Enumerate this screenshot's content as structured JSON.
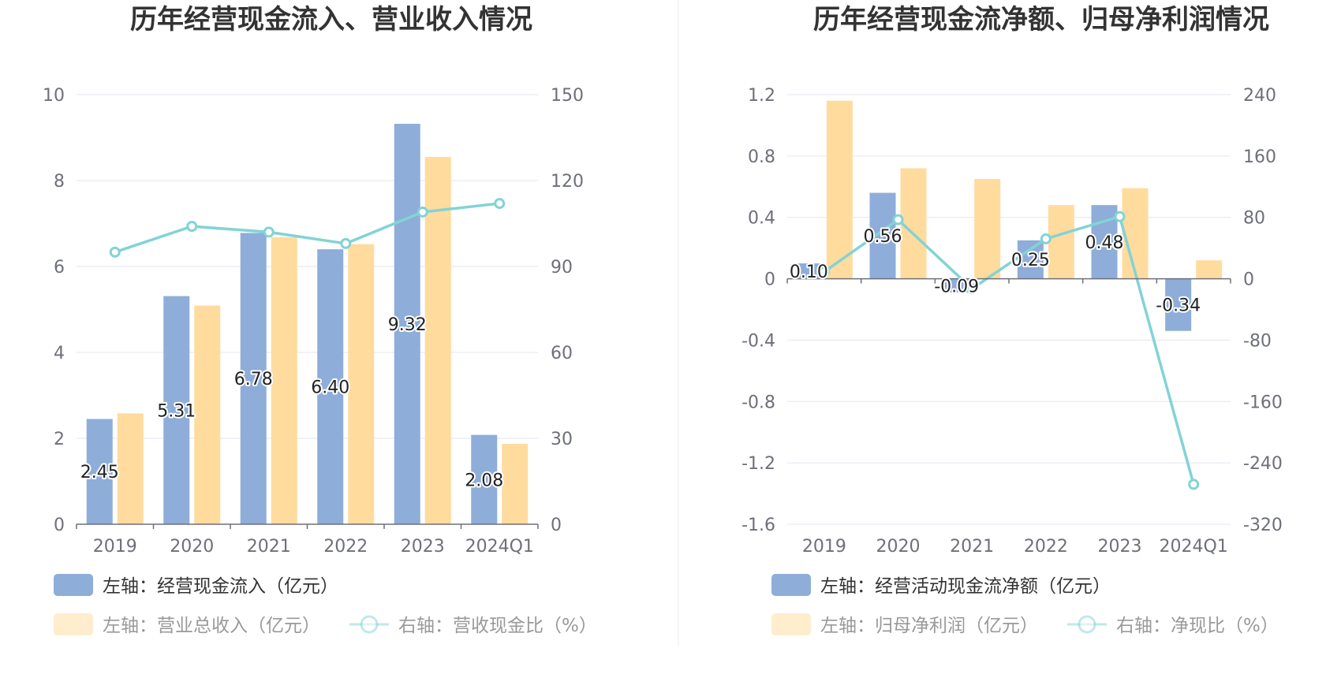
{
  "colors": {
    "bar_primary": "#8eadd9",
    "bar_secondary": "#ffdb9e",
    "line": "#82d3d6",
    "grid": "#e0e6f1",
    "axis": "#6e7079"
  },
  "chart_data": [
    {
      "type": "bar",
      "title": "历年经营现金流入、营业收入情况",
      "categories": [
        "2019",
        "2020",
        "2021",
        "2022",
        "2023",
        "2024Q1"
      ],
      "ylim_left": [
        0,
        10
      ],
      "yticks_left": [
        "0",
        "2",
        "4",
        "6",
        "8",
        "10"
      ],
      "ylim_right": [
        0,
        150
      ],
      "yticks_right": [
        "0",
        "30",
        "60",
        "90",
        "120",
        "150"
      ],
      "series": [
        {
          "name": "左轴：经营现金流入（亿元）",
          "kind": "bar",
          "axis": "left",
          "values": [
            2.45,
            5.31,
            6.78,
            6.4,
            9.32,
            2.08
          ],
          "labels": [
            "2.45",
            "5.31",
            "6.78",
            "6.40",
            "9.32",
            "2.08"
          ]
        },
        {
          "name": "左轴：营业总收入（亿元）",
          "kind": "bar",
          "axis": "left",
          "values": [
            2.58,
            5.09,
            6.68,
            6.52,
            8.55,
            1.87
          ]
        },
        {
          "name": "右轴：营收现金比（%）",
          "kind": "line",
          "axis": "right",
          "values": [
            95,
            104,
            102,
            98,
            109,
            112
          ]
        }
      ],
      "grid": true,
      "legend_position": "bottom"
    },
    {
      "type": "bar",
      "title": "历年经营现金流净额、归母净利润情况",
      "categories": [
        "2019",
        "2020",
        "2021",
        "2022",
        "2023",
        "2024Q1"
      ],
      "ylim_left": [
        -1.6,
        1.2
      ],
      "yticks_left": [
        "-1.6",
        "-1.2",
        "-0.8",
        "-0.4",
        "0",
        "0.4",
        "0.8",
        "1.2"
      ],
      "ylim_right": [
        -320,
        240
      ],
      "yticks_right": [
        "-320",
        "-240",
        "-160",
        "-80",
        "0",
        "80",
        "160",
        "240"
      ],
      "series": [
        {
          "name": "左轴：经营活动现金流净额（亿元）",
          "kind": "bar",
          "axis": "left",
          "values": [
            0.1,
            0.56,
            -0.09,
            0.25,
            0.48,
            -0.34
          ],
          "labels": [
            "0.10",
            "0.56",
            "-0.09",
            "0.25",
            "0.48",
            "-0.34"
          ]
        },
        {
          "name": "左轴：归母净利润（亿元）",
          "kind": "bar",
          "axis": "left",
          "values": [
            1.16,
            0.72,
            0.65,
            0.48,
            0.59,
            0.12
          ]
        },
        {
          "name": "右轴：净现比（%）",
          "kind": "line",
          "axis": "right",
          "values": [
            9,
            77,
            -13,
            52,
            81,
            -268
          ]
        }
      ],
      "grid": true,
      "legend_position": "bottom"
    }
  ]
}
